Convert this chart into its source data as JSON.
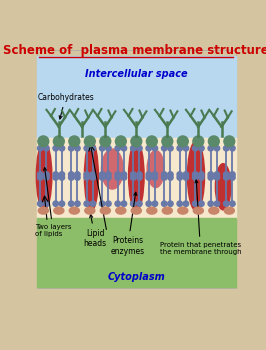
{
  "title": "Scheme of  plasma membrane structure",
  "title_color": "#cc0000",
  "bg_outer": "#d4c4a0",
  "bg_intercellular": "#b8d8f0",
  "bg_membrane": "#f5e8cc",
  "bg_cytoplasm": "#8cbd68",
  "intercellular_label": "Intercellular space",
  "intercellular_color": "#0000cc",
  "cytoplasm_label": "Cytoplasm",
  "cytoplasm_color": "#0000cc",
  "lipid_head_top_color": "#5a8a6a",
  "lipid_head_bottom_color": "#c8856a",
  "lipid_tail_color": "#6878a8",
  "protein_color": "#c03030",
  "protein_light_color": "#d06870",
  "carbohydrate_color": "#4a7a50",
  "label_fontsize": 5.5,
  "title_fontsize": 8.5
}
